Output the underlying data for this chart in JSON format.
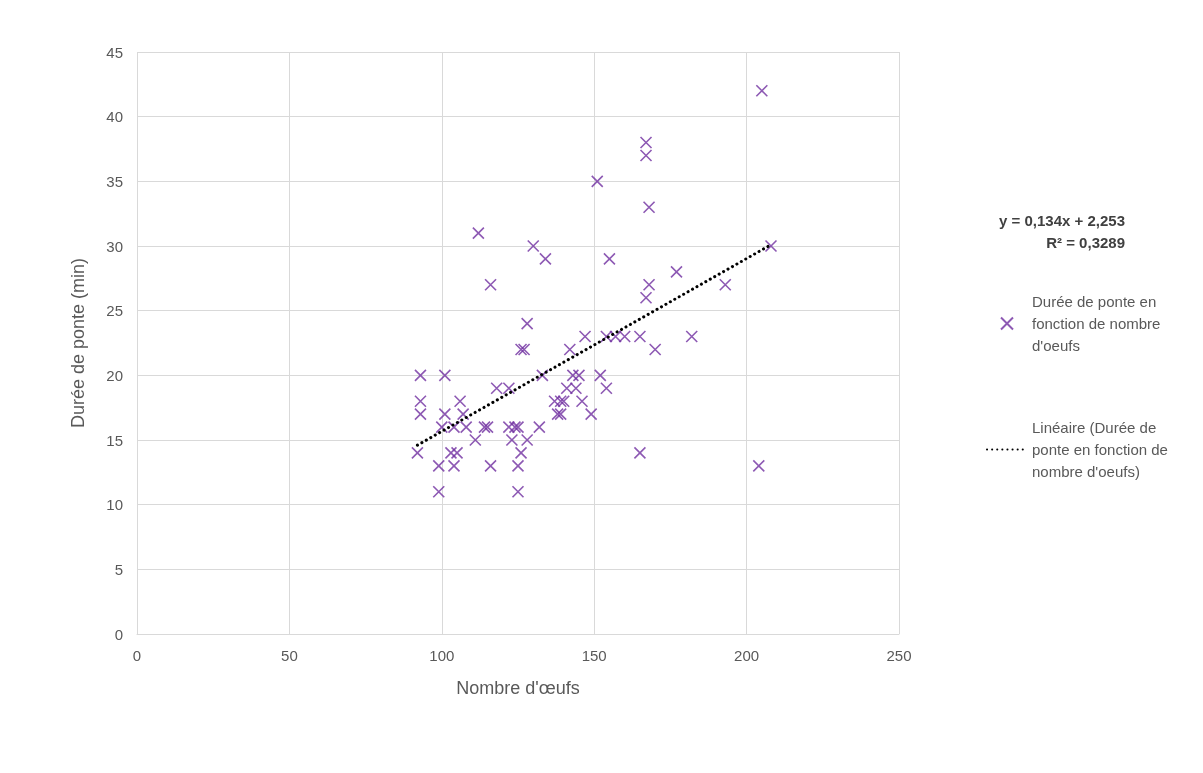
{
  "chart_data": {
    "type": "scatter",
    "xlabel": "Nombre d'œufs",
    "ylabel": "Durée de ponte (min)",
    "xlim": [
      0,
      250
    ],
    "xticks": [
      0,
      50,
      100,
      150,
      200,
      250
    ],
    "ylim": [
      0,
      45
    ],
    "yticks": [
      0,
      5,
      10,
      15,
      20,
      25,
      30,
      35,
      40,
      45
    ],
    "grid": true,
    "legend": "right",
    "marker": "cross",
    "annotations": [
      "y = 0,134x + 2,253",
      "R² = 0,3289"
    ],
    "series": [
      {
        "name": "Durée de ponte en fonction de nombre d'oeufs",
        "color": "#7030a0",
        "x": [
          92,
          93,
          93,
          93,
          99,
          99,
          100,
          101,
          101,
          103,
          104,
          105,
          104,
          106,
          107,
          108,
          111,
          112,
          114,
          115,
          116,
          116,
          118,
          122,
          122,
          123,
          124,
          125,
          125,
          126,
          126,
          127,
          125,
          128,
          128,
          130,
          132,
          133,
          134,
          137,
          138,
          139,
          139,
          140,
          141,
          142,
          143,
          144,
          145,
          146,
          147,
          149,
          151,
          152,
          154,
          154,
          155,
          157,
          160,
          165,
          165,
          167,
          167,
          167,
          168,
          168,
          170,
          177,
          182,
          193,
          204,
          205,
          208
        ],
        "values": [
          14,
          20,
          18,
          17,
          11,
          13,
          16,
          20,
          17,
          14,
          13,
          14,
          16,
          18,
          17,
          16,
          15,
          31,
          16,
          16,
          27,
          13,
          19,
          16,
          19,
          15,
          16,
          13,
          11,
          14,
          22,
          22,
          16,
          24,
          15,
          30,
          16,
          20,
          29,
          18,
          17,
          17,
          18,
          18,
          19,
          22,
          20,
          19,
          20,
          18,
          23,
          17,
          35,
          20,
          23,
          19,
          29,
          23,
          23,
          23,
          14,
          26,
          37,
          38,
          33,
          27,
          22,
          28,
          23,
          27,
          13,
          42,
          30
        ]
      },
      {
        "name": "Linéaire (Durée de ponte en fonction de nombre d'oeufs)",
        "color": "#000000",
        "type": "line",
        "marker": "none",
        "line_style": "dotted",
        "x": [
          92,
          208
        ],
        "values": [
          14.6,
          30.1
        ]
      }
    ]
  }
}
